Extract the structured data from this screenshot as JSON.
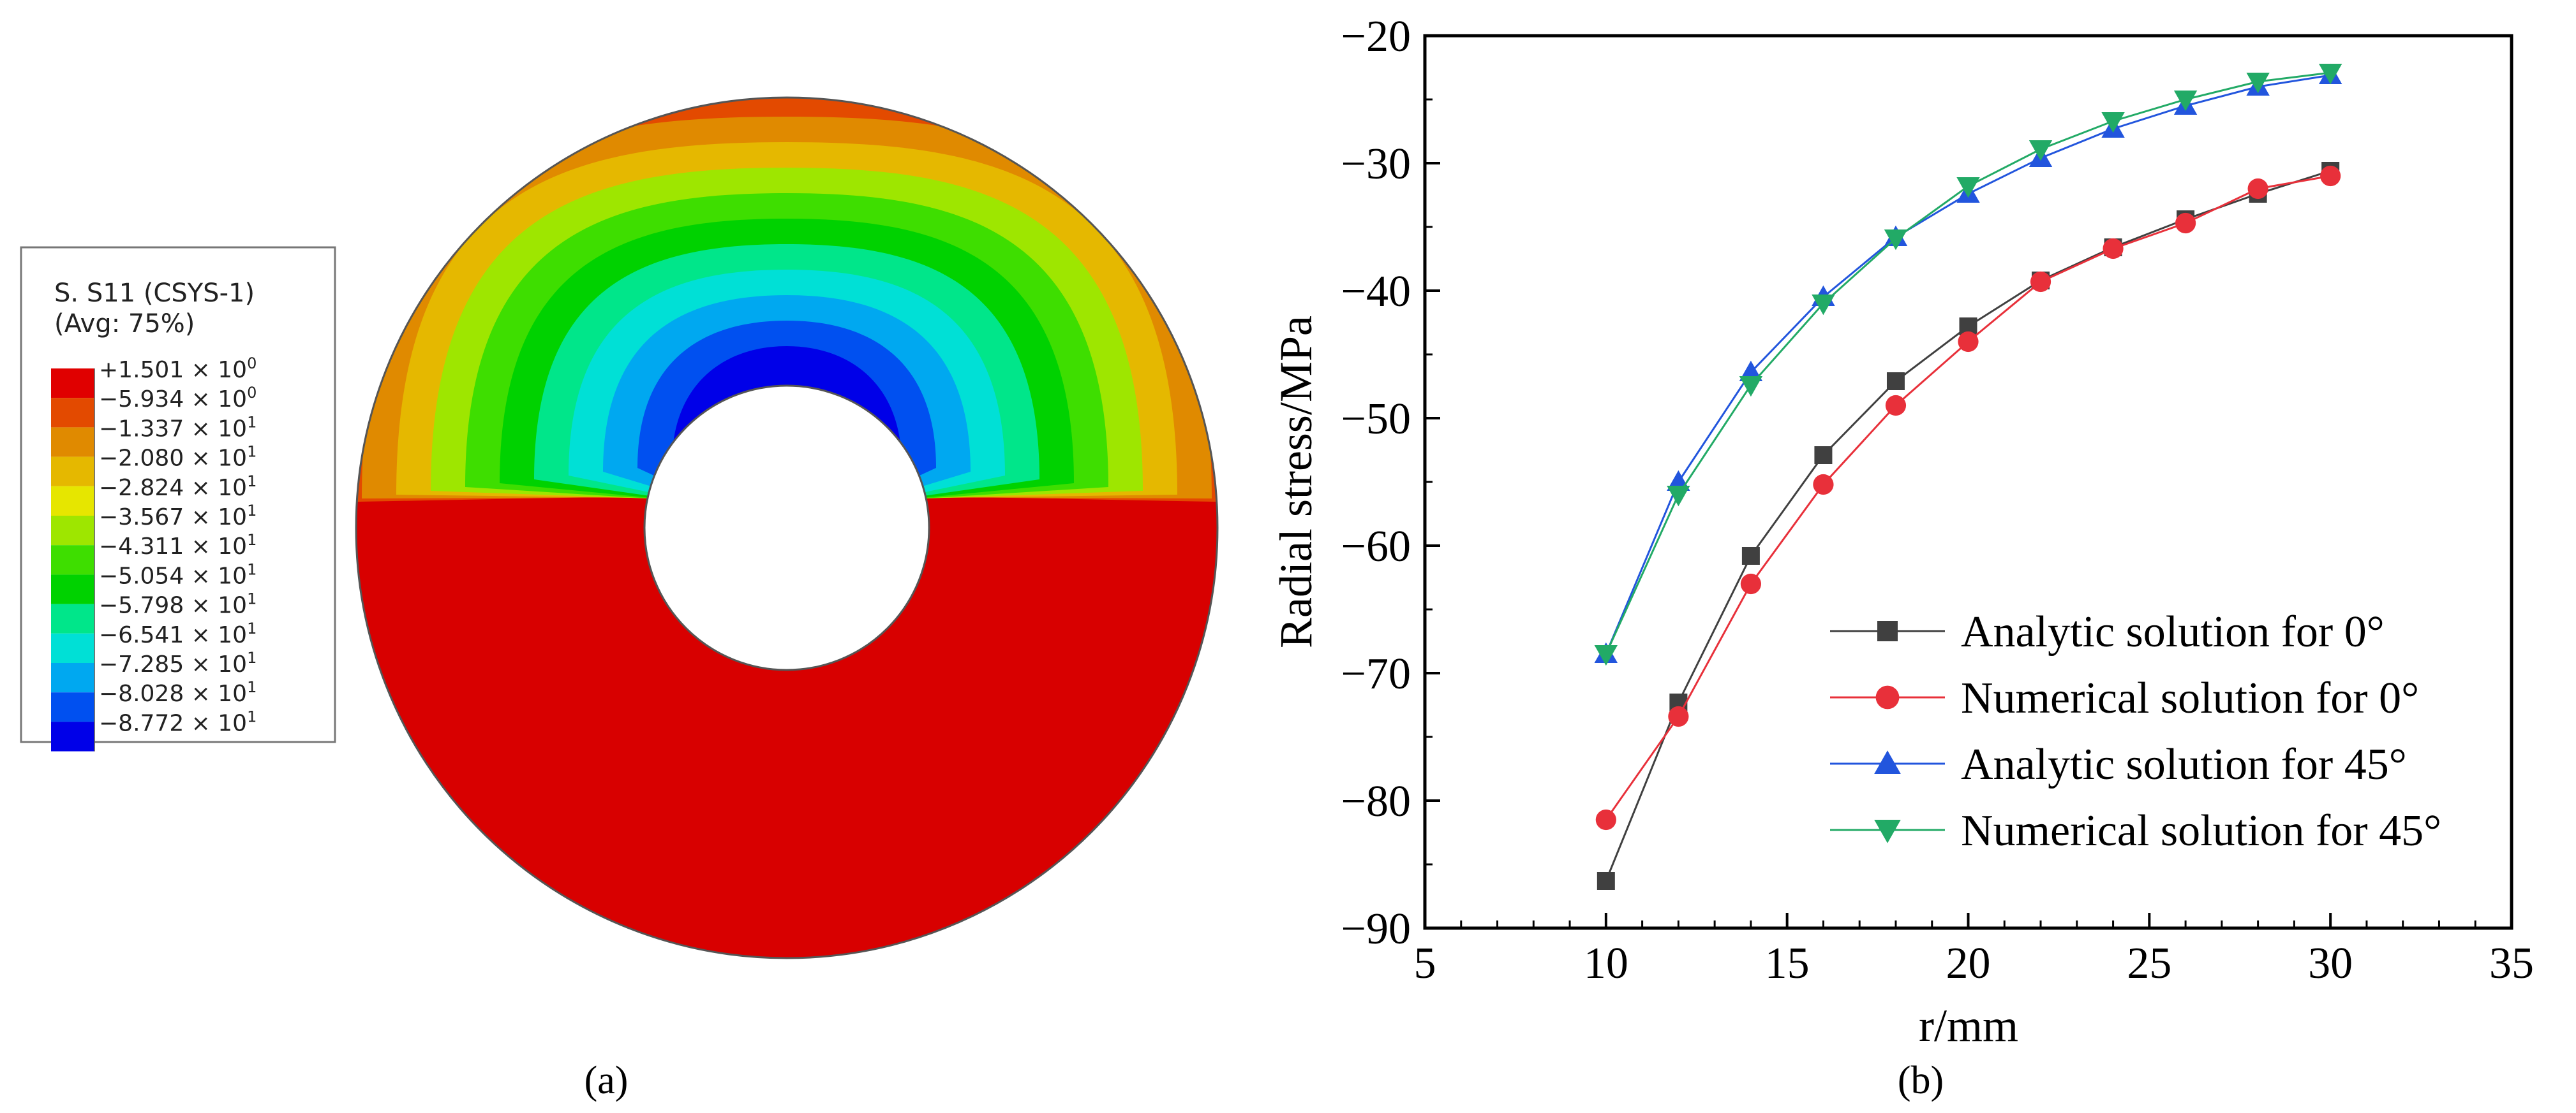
{
  "panel_a": {
    "label": "(a)",
    "legend": {
      "title_line1": "S. S11 (CSYS-1)",
      "title_line2": "(Avg: 75%)",
      "levels": [
        {
          "color": "#e00000",
          "mantissa": "+1.501",
          "exponent": "0"
        },
        {
          "color": "#e34a00",
          "mantissa": "−5.934",
          "exponent": "0"
        },
        {
          "color": "#e08a00",
          "mantissa": "−1.337",
          "exponent": "1"
        },
        {
          "color": "#e5b800",
          "mantissa": "−2.080",
          "exponent": "1"
        },
        {
          "color": "#e6e600",
          "mantissa": "−2.824",
          "exponent": "1"
        },
        {
          "color": "#9ee600",
          "mantissa": "−3.567",
          "exponent": "1"
        },
        {
          "color": "#3ede00",
          "mantissa": "−4.311",
          "exponent": "1"
        },
        {
          "color": "#00d200",
          "mantissa": "−5.054",
          "exponent": "1"
        },
        {
          "color": "#00e68a",
          "mantissa": "−5.798",
          "exponent": "1"
        },
        {
          "color": "#00e0d6",
          "mantissa": "−6.541",
          "exponent": "1"
        },
        {
          "color": "#00a8f0",
          "mantissa": "−7.285",
          "exponent": "1"
        },
        {
          "color": "#0050f0",
          "mantissa": "−8.028",
          "exponent": "1"
        },
        {
          "color": "#0000e8",
          "mantissa": "−8.772",
          "exponent": "1"
        }
      ]
    },
    "contour": {
      "bands_top_colors": [
        "#e34a00",
        "#e08a00",
        "#e5b800",
        "#9ee600",
        "#3ede00",
        "#00d200",
        "#00e68a",
        "#00e0d6",
        "#00a8f0",
        "#0050f0",
        "#0000e8"
      ],
      "bottom_color": "#d80000"
    }
  },
  "panel_b": {
    "label": "(b)",
    "chart_data": {
      "type": "line",
      "xlabel": "r/mm",
      "ylabel": "Radial stress/MPa",
      "xlim": [
        5,
        35
      ],
      "ylim": [
        -90,
        -20
      ],
      "xticks": [
        5,
        10,
        15,
        20,
        25,
        30,
        35
      ],
      "yticks": [
        -90,
        -80,
        -70,
        -60,
        -50,
        -40,
        -30,
        -20
      ],
      "grid": false,
      "legend_position": "bottom-right",
      "x": [
        10,
        12,
        14,
        16,
        18,
        20,
        22,
        24,
        26,
        28,
        30
      ],
      "series": [
        {
          "name": "Analytic solution for 0°",
          "color": "#404040",
          "marker": "square",
          "values": [
            -86.3,
            -72.3,
            -60.8,
            -52.9,
            -47.1,
            -42.8,
            -39.2,
            -36.6,
            -34.4,
            -32.4,
            -30.6
          ]
        },
        {
          "name": "Numerical solution for 0°",
          "color": "#e8303a",
          "marker": "circle",
          "values": [
            -81.5,
            -73.4,
            -63.0,
            -55.2,
            -49.0,
            -44.0,
            -39.3,
            -36.7,
            -34.7,
            -32.0,
            -31.0
          ]
        },
        {
          "name": "Analytic solution for 45°",
          "color": "#2255dd",
          "marker": "triangle-up",
          "values": [
            -68.5,
            -55.0,
            -46.4,
            -40.5,
            -35.8,
            -32.4,
            -29.6,
            -27.3,
            -25.5,
            -24.0,
            -23.1
          ]
        },
        {
          "name": "Numerical solution for 45°",
          "color": "#22aa66",
          "marker": "triangle-down",
          "values": [
            -68.5,
            -56.0,
            -47.4,
            -41.0,
            -35.9,
            -31.8,
            -28.9,
            -26.7,
            -25.0,
            -23.6,
            -22.9
          ]
        }
      ]
    }
  }
}
